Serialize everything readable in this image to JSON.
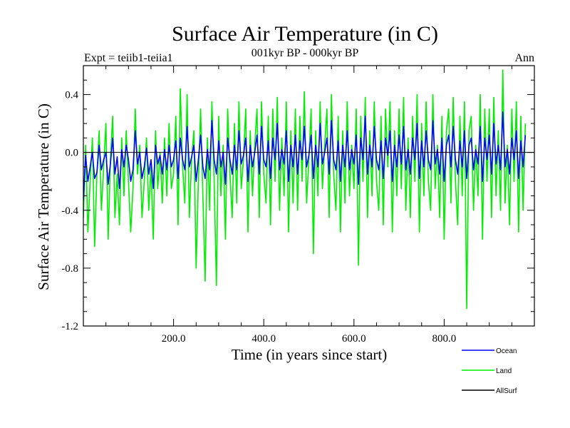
{
  "chart_data": {
    "type": "line",
    "title": "Surface Air Temperature (in C)",
    "subtitle": "001kyr BP - 000kyr BP",
    "left_label": "Expt = teiib1-teiia1",
    "right_label": "Ann",
    "xlabel": "Time (in years since start)",
    "ylabel": "Surface Air Temperature (in C)",
    "xlim": [
      0,
      1000
    ],
    "ylim": [
      -1.2,
      0.6
    ],
    "x_ticks": [
      200,
      400,
      600,
      800
    ],
    "x_tick_labels": [
      "200.0",
      "400.0",
      "600.0",
      "800.0"
    ],
    "y_ticks": [
      0.4,
      0.0,
      -0.4,
      -0.8,
      -1.2
    ],
    "y_tick_labels": [
      "0.4",
      "0.0",
      "-0.4",
      "-0.8",
      "-1.2"
    ],
    "reference_line_y": 0.0,
    "grid": false,
    "legend_position": "bottom-right",
    "series": [
      {
        "name": "Ocean",
        "color": "#0000ff",
        "x_step": 5,
        "values": [
          -0.33,
          -0.02,
          -0.2,
          -0.1,
          0.0,
          -0.18,
          -0.14,
          0.05,
          -0.12,
          -0.05,
          0.0,
          -0.22,
          -0.08,
          0.1,
          -0.15,
          -0.03,
          -0.25,
          0.02,
          -0.1,
          0.05,
          -0.05,
          -0.2,
          -0.12,
          0.15,
          -0.08,
          0.0,
          -0.18,
          -0.1,
          0.03,
          -0.15,
          -0.05,
          -0.25,
          0.05,
          -0.08,
          -0.02,
          -0.15,
          0.02,
          -0.12,
          0.05,
          -0.1,
          -0.05,
          0.08,
          -0.18,
          0.1,
          -0.05,
          -0.12,
          0.18,
          -0.1,
          -0.03,
          0.05,
          -0.2,
          -0.05,
          0.12,
          -0.1,
          -0.18,
          0.02,
          -0.12,
          0.22,
          -0.05,
          -0.15,
          0.08,
          -0.1,
          0.0,
          -0.22,
          0.1,
          -0.05,
          -0.15,
          0.05,
          -0.12,
          0.15,
          -0.08,
          -0.02,
          0.1,
          -0.2,
          0.05,
          -0.1,
          0.0,
          0.12,
          -0.15,
          0.18,
          -0.05,
          -0.1,
          0.08,
          -0.18,
          0.1,
          -0.05,
          0.2,
          -0.12,
          0.02,
          -0.08,
          0.15,
          -0.2,
          0.05,
          -0.1,
          0.12,
          -0.15,
          0.08,
          -0.05,
          0.18,
          -0.1,
          -0.02,
          0.12,
          -0.18,
          0.05,
          -0.1,
          0.2,
          -0.08,
          0.0,
          0.1,
          -0.15,
          0.22,
          -0.05,
          -0.12,
          0.08,
          -0.2,
          0.05,
          -0.1,
          0.15,
          -0.12,
          0.02,
          -0.08,
          0.12,
          -0.22,
          0.1,
          -0.05,
          0.25,
          -0.15,
          0.05,
          -0.1,
          0.18,
          -0.05,
          -0.12,
          0.08,
          -0.18,
          0.1,
          -0.02,
          0.15,
          -0.2,
          0.05,
          -0.1,
          0.12,
          -0.08,
          0.18,
          -0.12,
          0.02,
          -0.15,
          0.1,
          -0.05,
          0.2,
          -0.18,
          0.08,
          -0.1,
          0.15,
          -0.05,
          -0.12,
          0.22,
          -0.08,
          0.02,
          -0.15,
          0.1,
          -0.2,
          0.05,
          0.12,
          -0.1,
          0.18,
          -0.05,
          -0.15,
          0.08,
          -0.1,
          0.15,
          -0.18,
          0.05,
          0.1,
          -0.12,
          0.02,
          -0.08,
          0.18,
          -0.2,
          0.1,
          -0.05,
          0.12,
          -0.15,
          0.2,
          -0.08,
          0.05,
          -0.12,
          0.28,
          -0.1,
          0.02,
          -0.15,
          0.1,
          -0.05,
          0.15,
          -0.18,
          0.08,
          -0.1,
          0.12
        ]
      },
      {
        "name": "Land",
        "color": "#00ee00",
        "x_step": 5,
        "values": [
          -0.45,
          0.05,
          -0.55,
          -0.2,
          0.1,
          -0.65,
          -0.15,
          0.15,
          -0.4,
          -0.1,
          0.2,
          -0.6,
          -0.05,
          0.25,
          -0.45,
          -0.15,
          -0.5,
          0.1,
          -0.3,
          0.15,
          -0.2,
          -0.55,
          -0.25,
          0.3,
          -0.15,
          0.05,
          -0.45,
          -0.2,
          0.1,
          -0.4,
          -0.1,
          -0.6,
          0.15,
          -0.25,
          0.0,
          -0.35,
          0.1,
          -0.3,
          0.2,
          -0.25,
          -0.15,
          0.25,
          -0.5,
          0.44,
          -0.1,
          -0.35,
          0.4,
          -0.45,
          -0.05,
          0.15,
          -0.8,
          -0.2,
          0.3,
          -0.3,
          -0.89,
          0.1,
          -0.4,
          0.35,
          -0.2,
          -0.92,
          0.25,
          -0.3,
          0.05,
          -0.6,
          0.3,
          -0.15,
          -0.45,
          0.2,
          -0.35,
          0.35,
          -0.25,
          -0.05,
          0.3,
          -0.55,
          0.15,
          -0.3,
          0.05,
          0.3,
          -0.45,
          0.35,
          -0.15,
          -0.35,
          0.25,
          -0.5,
          0.3,
          -0.2,
          0.38,
          -0.4,
          0.1,
          -0.3,
          0.35,
          -0.55,
          0.15,
          -0.35,
          0.3,
          -0.4,
          0.25,
          -0.2,
          0.42,
          -0.35,
          -0.05,
          0.3,
          -0.7,
          0.15,
          -0.3,
          0.35,
          -0.25,
          0.05,
          0.3,
          -0.45,
          0.4,
          -0.15,
          -0.4,
          0.25,
          -0.55,
          0.15,
          -0.35,
          0.35,
          -0.3,
          0.05,
          -0.25,
          0.3,
          -0.78,
          0.25,
          -0.2,
          0.38,
          -0.45,
          0.15,
          -0.3,
          0.35,
          -0.2,
          -0.4,
          0.25,
          -0.5,
          0.3,
          -0.1,
          0.35,
          -0.55,
          0.15,
          -0.3,
          0.3,
          -0.25,
          0.38,
          -0.4,
          0.1,
          -0.45,
          0.25,
          -0.2,
          0.4,
          -0.55,
          0.2,
          -0.3,
          0.35,
          -0.2,
          -0.4,
          0.4,
          -0.25,
          0.05,
          -0.45,
          0.25,
          -0.6,
          0.15,
          0.3,
          -0.35,
          0.38,
          -0.2,
          -0.5,
          0.25,
          -0.3,
          0.35,
          -1.08,
          0.15,
          0.25,
          -0.4,
          0.05,
          -0.3,
          0.4,
          -0.6,
          0.3,
          -0.2,
          0.3,
          -0.45,
          0.38,
          -0.3,
          0.15,
          -0.4,
          0.57,
          -0.35,
          0.05,
          -0.5,
          0.3,
          -0.2,
          0.35,
          -0.55,
          0.25,
          -0.4,
          0.2
        ]
      },
      {
        "name": "AllSurf",
        "color": "#000000",
        "x_step": 5,
        "values": []
      }
    ]
  }
}
